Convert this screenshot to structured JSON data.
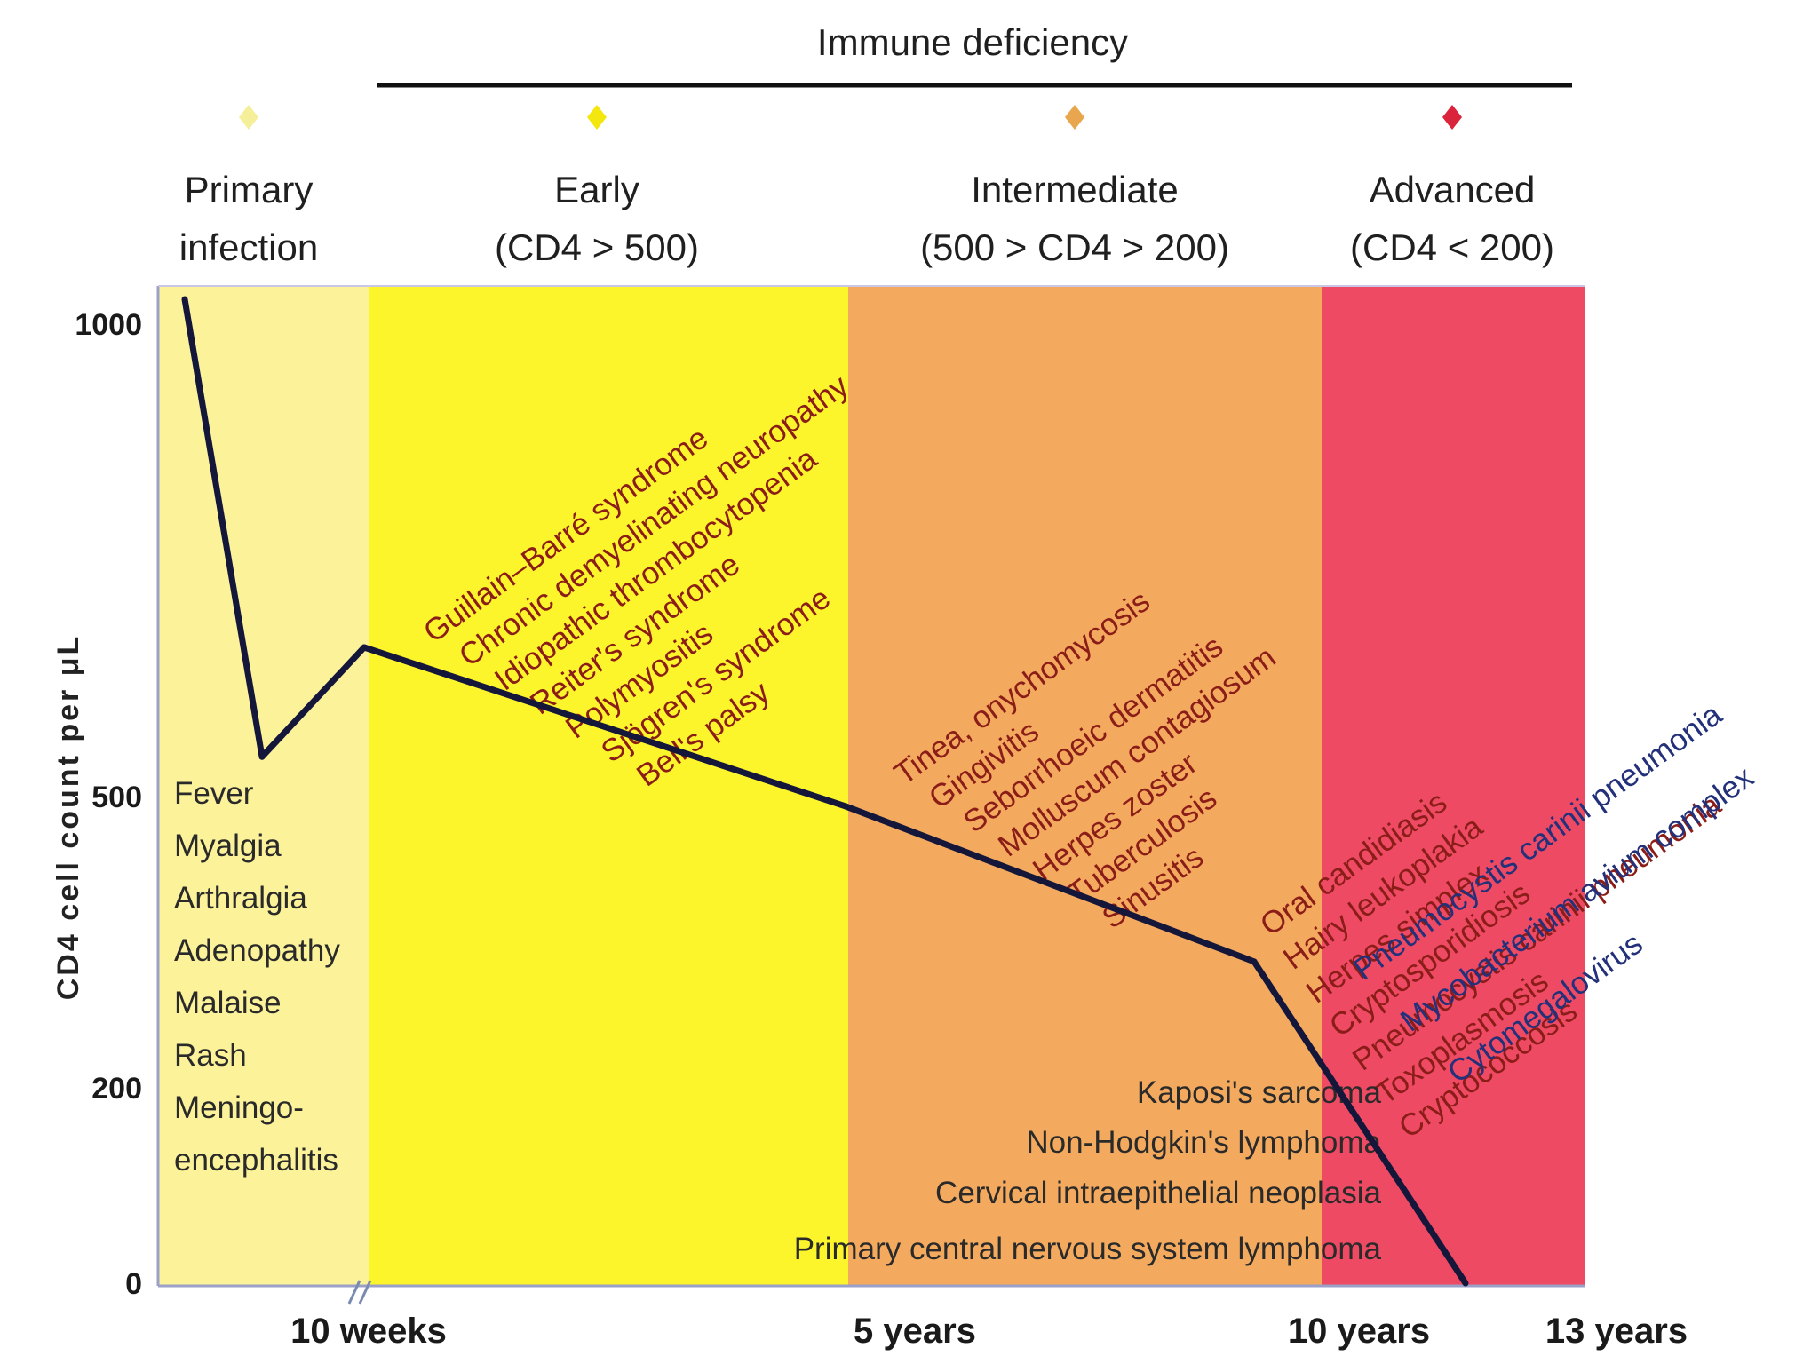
{
  "chart_data": {
    "type": "line",
    "header": "Immune deficiency",
    "ylabel": "CD4 cell count per μL",
    "y_ticks": [
      "1000",
      "500",
      "200",
      "0"
    ],
    "x_ticks": [
      "10 weeks",
      "5 years",
      "10 years",
      "13 years"
    ],
    "stages": [
      {
        "label_lines": [
          "Primary",
          "infection"
        ],
        "marker_color": "#f6ef9a",
        "band_color": "#fbf29a"
      },
      {
        "label_lines": [
          "Early",
          "(CD4 > 500)"
        ],
        "marker_color": "#f4e60f",
        "band_color": "#fdf52c"
      },
      {
        "label_lines": [
          "Intermediate",
          "(500 > CD4 > 200)"
        ],
        "marker_color": "#e8a64e",
        "band_color": "#f4aa5e"
      },
      {
        "label_lines": [
          "Advanced",
          "(CD4 < 200)"
        ],
        "marker_color": "#d9243c",
        "band_color": "#ee4a64"
      }
    ],
    "series": [
      {
        "points": [
          {
            "x": "0",
            "y": 1000
          },
          {
            "x": "~5 weeks",
            "y": 540
          },
          {
            "x": "10 weeks",
            "y": 650
          },
          {
            "x": "5 years",
            "y": 490
          },
          {
            "x": "~8.5 years",
            "y": 330
          },
          {
            "x": "~11 years",
            "y": 0
          }
        ]
      }
    ],
    "condition_groups": {
      "primary": [
        "Fever",
        "Myalgia",
        "Arthralgia",
        "Adenopathy",
        "Malaise",
        "Rash",
        "Meningo-",
        "encephalitis"
      ],
      "early": [
        "Guillain–Barré syndrome",
        "Chronic demyelinating neuropathy",
        "Idiopathic thrombocytopenia",
        "Reiter's syndrome",
        "Polymyositis",
        "Sjögren's syndrome",
        "Bell's palsy"
      ],
      "intermediate": [
        "Tinea, onychomycosis",
        "Gingivitis",
        "Seborrhoeic dermatitis",
        "Molluscum contagiosum",
        "Herpes zoster",
        "Tuberculosis",
        "Sinusitis"
      ],
      "malignancies": [
        "Kaposi's sarcoma",
        "Non-Hodgkin's lymphoma",
        "Cervical intraepithelial neoplasia",
        "Primary central nervous system lymphoma"
      ],
      "advanced_red": [
        "Oral candidiasis",
        "Hairy leukoplakia",
        "Herpes simplex",
        "Cryptosporidiosis",
        "Pneumocystis carinii pneumonia",
        "Toxoplasmosis",
        "Cryptococcosis"
      ],
      "advanced_blue": [
        "Pneumocystis carinii pneumonia",
        "Mycobacterium avium complex",
        "Cytomegalovirus"
      ]
    }
  }
}
